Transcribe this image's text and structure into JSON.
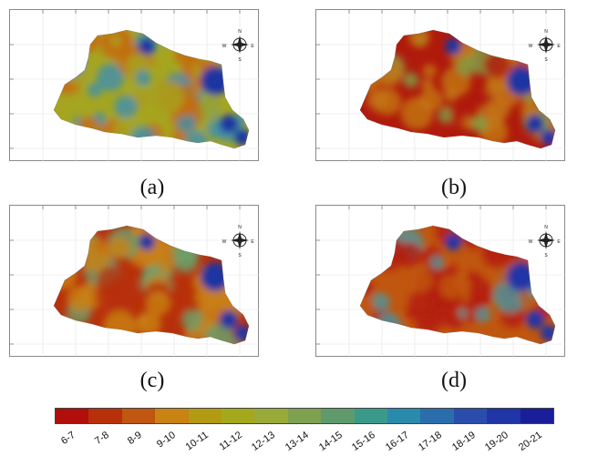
{
  "panels": [
    {
      "id": "a",
      "caption": "(a)"
    },
    {
      "id": "b",
      "caption": "(b)"
    },
    {
      "id": "c",
      "caption": "(c)"
    },
    {
      "id": "d",
      "caption": "(d)"
    }
  ],
  "legend": {
    "classes": [
      "6-7",
      "7-8",
      "8-9",
      "9-10",
      "10-11",
      "11-12",
      "12-13",
      "13-14",
      "14-15",
      "15-16",
      "16-17",
      "17-18",
      "18-19",
      "19-20",
      "20-21"
    ],
    "colors": [
      "#b00f0b",
      "#b8300a",
      "#c0560f",
      "#c98214",
      "#b39a13",
      "#a3a81c",
      "#9aaa38",
      "#7ea04f",
      "#5f9a6c",
      "#3a9a8a",
      "#2a8aac",
      "#2a6dac",
      "#2a4dab",
      "#2035a6",
      "#1a1d98"
    ]
  },
  "compass": {
    "n": "N",
    "s": "S",
    "e": "E",
    "w": "W"
  },
  "map_colors": {
    "a": {
      "base": "#a5a51f",
      "warm": "#c46a12",
      "cool": "#3d8fb0",
      "cold": "#1f35a2"
    },
    "b": {
      "base": "#b01a0c",
      "warm": "#c37614",
      "cool": "#7fa046",
      "cold": "#1f35a2"
    },
    "c": {
      "base": "#b8300a",
      "warm": "#c98214",
      "cool": "#6aa06a",
      "cold": "#1f35a2"
    },
    "d": {
      "base": "#c0560f",
      "warm": "#b31a0c",
      "cool": "#4a98a0",
      "cold": "#2035a6"
    }
  }
}
